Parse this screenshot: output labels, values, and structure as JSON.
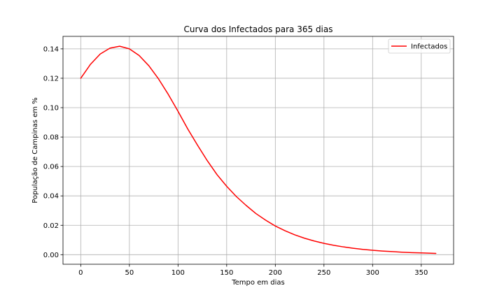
{
  "chart_data": {
    "type": "line",
    "title": "Curva dos Infectados para 365 dias",
    "xlabel": "Tempo em dias",
    "ylabel": "População de Campinas em %",
    "xlim": [
      -18.25,
      383.25
    ],
    "ylim": [
      -0.0065,
      0.1485
    ],
    "xticks": [
      0,
      50,
      100,
      150,
      200,
      250,
      300,
      350
    ],
    "xtick_labels": [
      "0",
      "50",
      "100",
      "150",
      "200",
      "250",
      "300",
      "350"
    ],
    "yticks": [
      0.0,
      0.02,
      0.04,
      0.06,
      0.08,
      0.1,
      0.12,
      0.14
    ],
    "ytick_labels": [
      "0.00",
      "0.02",
      "0.04",
      "0.06",
      "0.08",
      "0.10",
      "0.12",
      "0.14"
    ],
    "grid": true,
    "legend_position": "top-right",
    "series": [
      {
        "name": "Infectados",
        "color": "#ff0000",
        "x": [
          0,
          10,
          20,
          30,
          40,
          50,
          60,
          70,
          80,
          90,
          100,
          110,
          120,
          130,
          140,
          150,
          160,
          170,
          180,
          190,
          200,
          210,
          220,
          230,
          240,
          250,
          260,
          270,
          280,
          290,
          300,
          310,
          320,
          330,
          340,
          350,
          365
        ],
        "y": [
          0.12,
          0.1295,
          0.1365,
          0.1405,
          0.1418,
          0.14,
          0.1355,
          0.1285,
          0.1195,
          0.109,
          0.0975,
          0.0855,
          0.0745,
          0.064,
          0.0545,
          0.0465,
          0.0395,
          0.0335,
          0.028,
          0.0235,
          0.0195,
          0.0163,
          0.0135,
          0.0112,
          0.0093,
          0.0077,
          0.0064,
          0.0053,
          0.0044,
          0.0036,
          0.003,
          0.0025,
          0.0021,
          0.0017,
          0.0014,
          0.0012,
          0.0009
        ]
      }
    ]
  }
}
